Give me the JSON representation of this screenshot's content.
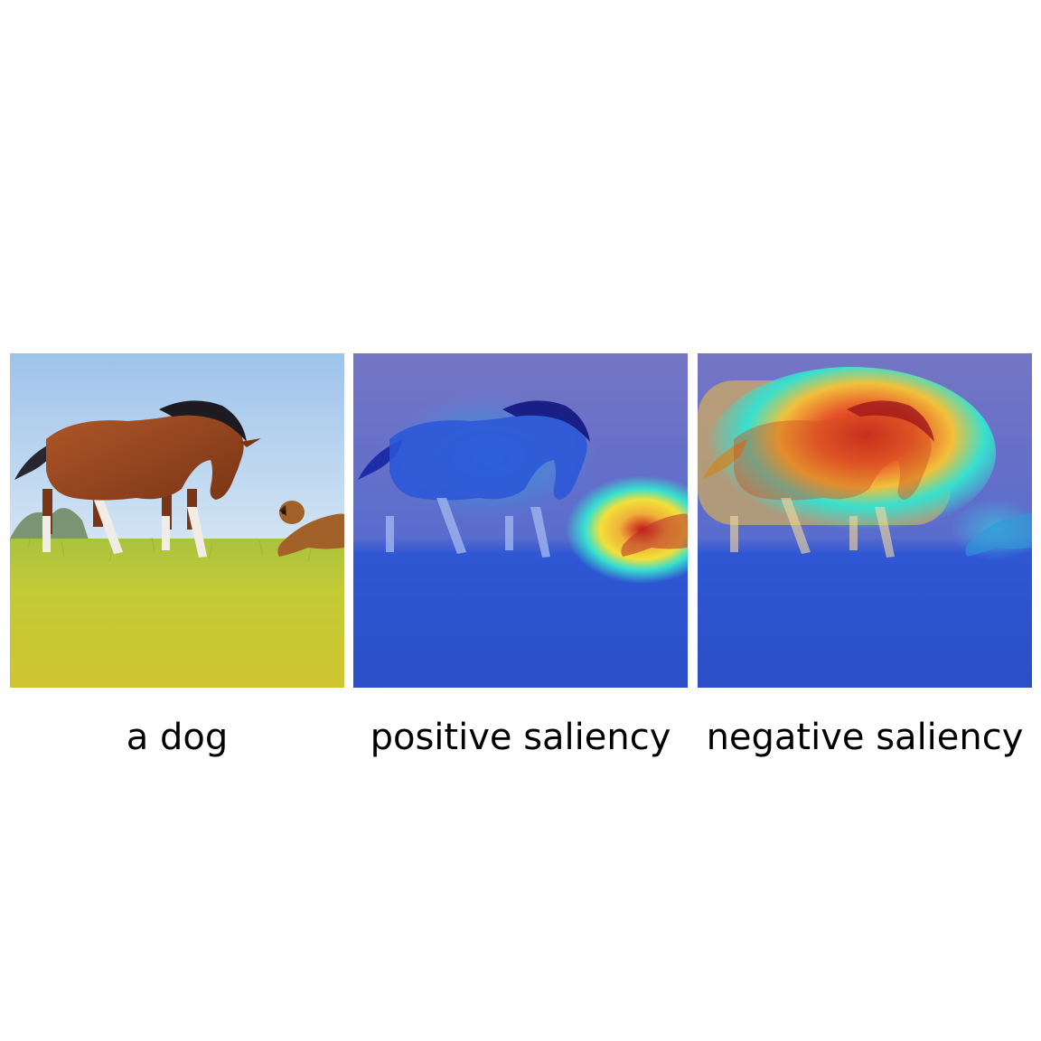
{
  "panels": [
    {
      "caption": "a dog",
      "kind": "photo"
    },
    {
      "caption": "positive saliency",
      "kind": "saliency-overlay"
    },
    {
      "caption": "negative saliency",
      "kind": "saliency-overlay"
    }
  ],
  "colors": {
    "sky_top": "#9ec3ea",
    "sky_bottom": "#cfe1f3",
    "grass_top": "#b9c93a",
    "grass_bottom": "#c9c631",
    "horse_body": "#9a4a1e",
    "horse_mane": "#1d1a22",
    "dog_body": "#a3612a",
    "overlay_background": "#3b4fd0",
    "heat_low": "#2a5ae0",
    "heat_mid": "#37e0d0",
    "heat_high": "#f2e03a",
    "heat_peak": "#c4151c"
  }
}
